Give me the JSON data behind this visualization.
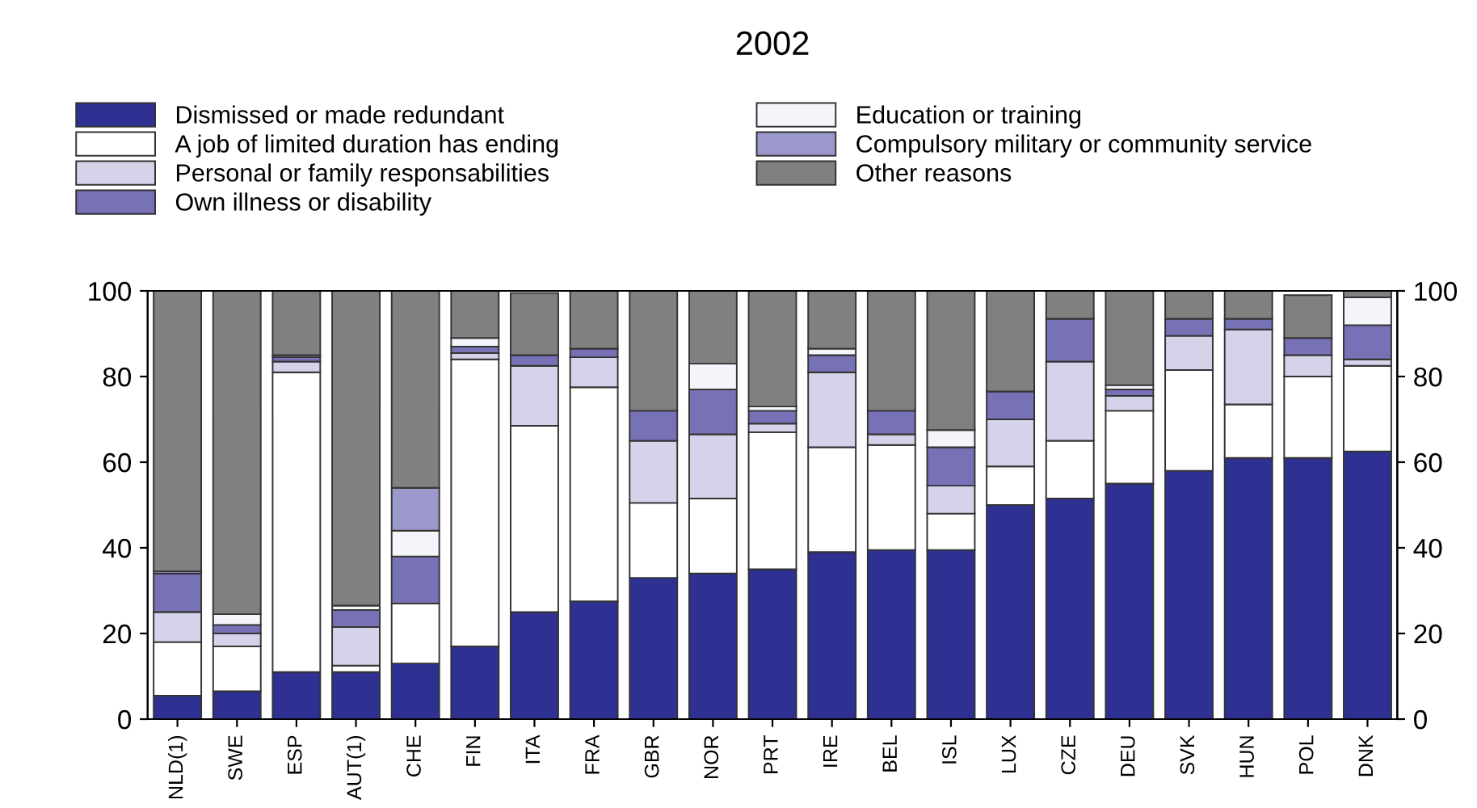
{
  "chart_data": {
    "type": "bar",
    "stacked": true,
    "title": "2002",
    "categories": [
      "NLD(1)",
      "SWE",
      "ESP",
      "AUT(1)",
      "CHE",
      "FIN",
      "ITA",
      "FRA",
      "GBR",
      "NOR",
      "PRT",
      "IRE",
      "BEL",
      "ISL",
      "LUX",
      "CZE",
      "DEU",
      "SVK",
      "HUN",
      "POL",
      "DNK"
    ],
    "series": [
      {
        "name": "Dismissed or made redundant",
        "color": "#2e3192",
        "values": [
          5.5,
          6.5,
          11,
          11,
          13,
          17,
          25,
          27.5,
          33,
          34,
          35,
          39,
          39.5,
          39.5,
          50,
          51.5,
          55,
          58,
          61,
          61,
          62.5
        ]
      },
      {
        "name": "A job of limited duration has ending",
        "color": "#ffffff",
        "values": [
          12.5,
          10.5,
          70,
          1.5,
          14,
          67,
          43.5,
          50,
          17.5,
          17.5,
          32,
          24.5,
          24.5,
          8.5,
          9,
          13.5,
          17,
          23.5,
          12.5,
          19,
          20
        ]
      },
      {
        "name": "Personal or family responsabilities",
        "color": "#d4d3ea",
        "values": [
          7,
          3,
          2.5,
          9,
          0,
          1.5,
          14,
          7,
          14.5,
          15,
          2,
          17.5,
          2.5,
          6.5,
          11,
          18.5,
          3.5,
          8,
          17.5,
          5,
          1.5
        ]
      },
      {
        "name": "Own illness or disability",
        "color": "#7771b5",
        "values": [
          9,
          2,
          1,
          4,
          11,
          1.5,
          2.5,
          2,
          7,
          10.5,
          3,
          4,
          5.5,
          9,
          6.5,
          10,
          1.5,
          4,
          2.5,
          4,
          8
        ]
      },
      {
        "name": "Education or training",
        "color": "#f4f4fb",
        "values": [
          0,
          2.5,
          0,
          1,
          6,
          2,
          0,
          0,
          0,
          6,
          1,
          1.5,
          0,
          4,
          0,
          0,
          1,
          0,
          0,
          0,
          6.5
        ]
      },
      {
        "name": "Compulsory military or community service",
        "color": "#9b98cc",
        "values": [
          0.5,
          0,
          0.5,
          0,
          10,
          0,
          null,
          0,
          0,
          0,
          0,
          0,
          0,
          0,
          0,
          0,
          0,
          0,
          0,
          null,
          0
        ]
      },
      {
        "name": "Other reasons",
        "color": "#808080",
        "values": [
          65.5,
          75.5,
          15,
          73.5,
          46,
          11,
          14.5,
          13.5,
          28,
          17,
          27,
          13.5,
          28,
          32.5,
          23.5,
          6.5,
          22,
          6.5,
          6.5,
          10,
          1.5
        ]
      }
    ],
    "ylim": [
      0,
      100
    ],
    "yticks": [
      0,
      20,
      40,
      60,
      80,
      100
    ],
    "y2lim": [
      0,
      100
    ],
    "y2ticks": [
      0,
      20,
      40,
      60,
      80,
      100
    ],
    "grid": false,
    "legend": "top"
  }
}
